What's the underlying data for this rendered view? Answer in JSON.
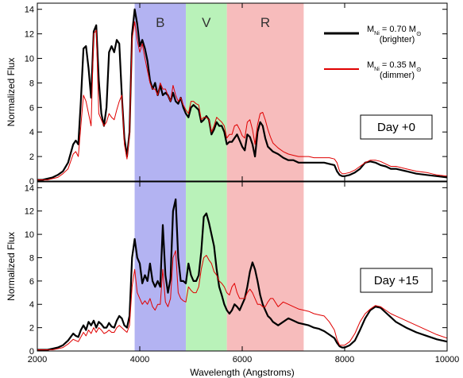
{
  "chart_data": [
    {
      "type": "line",
      "panel": "top",
      "annotation": "Day +0",
      "ylabel": "Normalized Flux",
      "xlim": [
        2000,
        10000
      ],
      "ylim": [
        0,
        14.5
      ],
      "yticks": [
        0,
        2,
        4,
        6,
        8,
        10,
        12,
        14
      ],
      "bands": [
        {
          "label": "B",
          "x0": 3900,
          "x1": 4900,
          "color": "#b3b3f2"
        },
        {
          "label": "V",
          "x0": 4900,
          "x1": 5700,
          "color": "#b9f2b9"
        },
        {
          "label": "R",
          "x0": 5700,
          "x1": 7200,
          "color": "#f7bcbc"
        }
      ],
      "series": [
        {
          "name_main": "M",
          "name_sub": "Ni",
          "name_rest": " = 0.70 M",
          "name_sun": "⊙",
          "name_line2": "(brighter)",
          "color": "#000000",
          "width": 2.2,
          "x": [
            2000,
            2100,
            2200,
            2300,
            2400,
            2500,
            2600,
            2700,
            2750,
            2800,
            2850,
            2900,
            2950,
            3000,
            3050,
            3100,
            3150,
            3200,
            3250,
            3300,
            3350,
            3400,
            3450,
            3500,
            3550,
            3600,
            3650,
            3700,
            3750,
            3800,
            3850,
            3900,
            3950,
            4000,
            4050,
            4100,
            4150,
            4200,
            4250,
            4300,
            4350,
            4400,
            4450,
            4500,
            4550,
            4600,
            4650,
            4700,
            4750,
            4800,
            4850,
            4900,
            4950,
            5000,
            5050,
            5100,
            5150,
            5200,
            5250,
            5300,
            5350,
            5400,
            5450,
            5500,
            5550,
            5600,
            5650,
            5700,
            5750,
            5800,
            5850,
            5900,
            5950,
            6000,
            6050,
            6100,
            6150,
            6200,
            6250,
            6300,
            6350,
            6400,
            6450,
            6500,
            6550,
            6600,
            6700,
            6800,
            6900,
            7000,
            7100,
            7200,
            7300,
            7400,
            7500,
            7600,
            7700,
            7800,
            7850,
            7900,
            7950,
            8000,
            8100,
            8200,
            8300,
            8400,
            8500,
            8600,
            8700,
            8800,
            8900,
            9000,
            9200,
            9400,
            9600,
            9800,
            10000
          ],
          "y": [
            0.1,
            0.1,
            0.2,
            0.3,
            0.5,
            0.8,
            1.5,
            3.0,
            3.3,
            3.0,
            6.5,
            10.8,
            11.0,
            9.2,
            6.8,
            12.2,
            12.7,
            8.2,
            5.5,
            4.5,
            6.0,
            10.5,
            11.0,
            10.5,
            11.5,
            11.2,
            7.0,
            3.5,
            2.0,
            4.0,
            12.0,
            14.0,
            12.8,
            11.0,
            11.5,
            10.8,
            9.8,
            8.2,
            7.5,
            8.0,
            7.0,
            7.8,
            7.0,
            7.2,
            7.0,
            6.5,
            7.2,
            6.5,
            6.3,
            6.8,
            6.0,
            5.5,
            5.2,
            6.0,
            6.2,
            6.0,
            5.8,
            4.8,
            5.0,
            5.3,
            5.0,
            3.8,
            4.2,
            4.8,
            4.5,
            4.5,
            4.0,
            3.0,
            3.2,
            3.2,
            3.5,
            3.8,
            3.3,
            2.8,
            2.5,
            3.8,
            3.6,
            3.0,
            2.0,
            4.0,
            4.8,
            4.5,
            3.5,
            2.8,
            2.6,
            2.4,
            2.2,
            1.9,
            1.7,
            1.7,
            1.5,
            1.5,
            1.5,
            1.5,
            1.5,
            1.5,
            1.4,
            1.3,
            0.8,
            0.5,
            0.4,
            0.4,
            0.5,
            0.7,
            1.0,
            1.5,
            1.6,
            1.5,
            1.3,
            1.2,
            1.0,
            1.0,
            0.8,
            0.6,
            0.5,
            0.4,
            0.3
          ]
        },
        {
          "name_main": "M",
          "name_sub": "Ni",
          "name_rest": " = 0.35 M",
          "name_sun": "⊙",
          "name_line2": "(dimmer)",
          "color": "#e00000",
          "width": 1.0,
          "x": [
            2000,
            2100,
            2200,
            2300,
            2400,
            2500,
            2600,
            2700,
            2750,
            2800,
            2850,
            2900,
            2950,
            3000,
            3050,
            3100,
            3150,
            3200,
            3250,
            3300,
            3350,
            3400,
            3450,
            3500,
            3550,
            3600,
            3650,
            3700,
            3750,
            3800,
            3850,
            3900,
            3950,
            4000,
            4050,
            4100,
            4150,
            4200,
            4250,
            4300,
            4350,
            4400,
            4450,
            4500,
            4550,
            4600,
            4650,
            4700,
            4750,
            4800,
            4850,
            4900,
            4950,
            5000,
            5050,
            5100,
            5150,
            5200,
            5250,
            5300,
            5350,
            5400,
            5450,
            5500,
            5550,
            5600,
            5650,
            5700,
            5750,
            5800,
            5850,
            5900,
            5950,
            6000,
            6050,
            6100,
            6150,
            6200,
            6250,
            6300,
            6350,
            6400,
            6450,
            6500,
            6550,
            6600,
            6700,
            6800,
            6900,
            7000,
            7100,
            7200,
            7300,
            7400,
            7500,
            7600,
            7700,
            7800,
            7850,
            7900,
            7950,
            8000,
            8100,
            8200,
            8300,
            8400,
            8500,
            8600,
            8700,
            8800,
            8900,
            9000,
            9200,
            9400,
            9600,
            9800,
            10000
          ],
          "y": [
            0.1,
            0.1,
            0.1,
            0.2,
            0.3,
            0.6,
            1.0,
            2.2,
            2.4,
            2.0,
            4.5,
            7.0,
            6.5,
            5.5,
            4.5,
            12.0,
            12.3,
            5.5,
            5.0,
            4.5,
            4.8,
            5.5,
            5.2,
            5.0,
            5.8,
            6.5,
            7.0,
            3.0,
            1.8,
            3.8,
            11.5,
            13.0,
            11.5,
            10.5,
            11.2,
            10.0,
            9.0,
            8.0,
            7.5,
            7.5,
            7.0,
            8.0,
            7.5,
            7.5,
            7.0,
            6.5,
            7.8,
            7.0,
            6.5,
            6.8,
            6.2,
            5.8,
            5.5,
            6.5,
            6.5,
            6.3,
            6.2,
            5.0,
            5.2,
            5.2,
            5.0,
            4.0,
            4.5,
            5.2,
            5.0,
            4.8,
            4.5,
            3.5,
            3.8,
            3.8,
            4.5,
            4.6,
            4.2,
            3.7,
            3.5,
            4.8,
            5.0,
            4.2,
            3.0,
            4.6,
            5.5,
            5.6,
            5.0,
            4.2,
            3.6,
            3.1,
            2.7,
            2.4,
            2.2,
            2.1,
            2.0,
            2.0,
            2.0,
            1.9,
            1.9,
            1.9,
            1.9,
            1.8,
            1.5,
            0.8,
            0.6,
            0.6,
            0.7,
            0.9,
            1.2,
            1.5,
            1.7,
            1.7,
            1.6,
            1.4,
            1.2,
            1.2,
            1.0,
            0.8,
            0.7,
            0.5,
            0.4
          ]
        }
      ]
    },
    {
      "type": "line",
      "panel": "bottom",
      "annotation": "Day +15",
      "ylabel": "Normalized Flux",
      "xlabel": "Wavelength (Angstroms)",
      "xlim": [
        2000,
        10000
      ],
      "xticks": [
        2000,
        4000,
        6000,
        8000,
        10000
      ],
      "ylim": [
        0,
        14.5
      ],
      "yticks": [
        0,
        2,
        4,
        6,
        8,
        10,
        12,
        14
      ],
      "series": [
        {
          "color": "#000000",
          "width": 2.2,
          "x": [
            2000,
            2100,
            2200,
            2300,
            2400,
            2500,
            2600,
            2700,
            2750,
            2800,
            2850,
            2900,
            2950,
            3000,
            3050,
            3100,
            3150,
            3200,
            3250,
            3300,
            3350,
            3400,
            3450,
            3500,
            3550,
            3600,
            3650,
            3700,
            3750,
            3800,
            3850,
            3900,
            3950,
            4000,
            4050,
            4100,
            4150,
            4200,
            4250,
            4300,
            4350,
            4400,
            4450,
            4500,
            4550,
            4600,
            4650,
            4700,
            4750,
            4800,
            4850,
            4900,
            4950,
            5000,
            5050,
            5100,
            5150,
            5200,
            5250,
            5300,
            5350,
            5400,
            5450,
            5500,
            5550,
            5600,
            5650,
            5700,
            5750,
            5800,
            5850,
            5900,
            5950,
            6000,
            6050,
            6100,
            6150,
            6200,
            6250,
            6300,
            6350,
            6400,
            6450,
            6500,
            6550,
            6600,
            6700,
            6800,
            6900,
            7000,
            7100,
            7200,
            7300,
            7400,
            7500,
            7600,
            7700,
            7800,
            7850,
            7900,
            7950,
            8000,
            8100,
            8200,
            8300,
            8400,
            8500,
            8600,
            8700,
            8800,
            8900,
            9000,
            9200,
            9400,
            9600,
            9800,
            10000
          ],
          "y": [
            0.1,
            0.1,
            0.1,
            0.2,
            0.3,
            0.5,
            0.9,
            1.5,
            1.3,
            1.2,
            1.8,
            2.2,
            1.8,
            2.5,
            2.2,
            2.6,
            2.0,
            2.5,
            2.3,
            2.0,
            2.0,
            2.4,
            2.1,
            2.0,
            2.6,
            3.0,
            2.8,
            2.2,
            2.0,
            3.0,
            8.0,
            9.6,
            8.0,
            7.5,
            5.8,
            6.5,
            6.0,
            7.5,
            6.0,
            5.5,
            6.0,
            5.5,
            10.8,
            6.5,
            5.0,
            6.2,
            12.0,
            13.0,
            8.0,
            6.0,
            6.0,
            5.8,
            7.5,
            6.5,
            6.0,
            6.0,
            6.5,
            8.5,
            11.5,
            11.8,
            11.0,
            10.0,
            9.0,
            7.0,
            5.5,
            4.8,
            4.0,
            3.5,
            3.2,
            3.5,
            4.0,
            3.8,
            3.5,
            4.0,
            4.5,
            5.5,
            6.8,
            7.6,
            7.0,
            6.0,
            4.8,
            4.0,
            3.5,
            3.0,
            2.8,
            2.5,
            2.2,
            2.5,
            2.8,
            2.6,
            2.4,
            2.3,
            2.2,
            2.0,
            1.9,
            1.7,
            1.4,
            1.1,
            0.7,
            0.4,
            0.3,
            0.3,
            0.5,
            0.9,
            1.8,
            2.8,
            3.5,
            3.8,
            3.7,
            3.3,
            2.9,
            2.5,
            2.0,
            1.6,
            1.3,
            1.0,
            0.8
          ]
        },
        {
          "color": "#e00000",
          "width": 1.0,
          "x": [
            2000,
            2100,
            2200,
            2300,
            2400,
            2500,
            2600,
            2700,
            2750,
            2800,
            2850,
            2900,
            2950,
            3000,
            3050,
            3100,
            3150,
            3200,
            3250,
            3300,
            3350,
            3400,
            3450,
            3500,
            3550,
            3600,
            3650,
            3700,
            3750,
            3800,
            3850,
            3900,
            3950,
            4000,
            4050,
            4100,
            4150,
            4200,
            4250,
            4300,
            4350,
            4400,
            4450,
            4500,
            4550,
            4600,
            4650,
            4700,
            4750,
            4800,
            4850,
            4900,
            4950,
            5000,
            5050,
            5100,
            5150,
            5200,
            5250,
            5300,
            5350,
            5400,
            5450,
            5500,
            5550,
            5600,
            5650,
            5700,
            5750,
            5800,
            5850,
            5900,
            5950,
            6000,
            6050,
            6100,
            6150,
            6200,
            6250,
            6300,
            6350,
            6400,
            6450,
            6500,
            6550,
            6600,
            6700,
            6800,
            6900,
            7000,
            7100,
            7200,
            7300,
            7400,
            7500,
            7600,
            7700,
            7800,
            7850,
            7900,
            7950,
            8000,
            8100,
            8200,
            8300,
            8400,
            8500,
            8600,
            8700,
            8800,
            8900,
            9000,
            9200,
            9400,
            9600,
            9800,
            10000
          ],
          "y": [
            0.1,
            0.1,
            0.1,
            0.1,
            0.2,
            0.3,
            0.6,
            1.0,
            0.9,
            0.8,
            1.2,
            1.6,
            1.3,
            1.8,
            1.5,
            2.0,
            1.6,
            2.0,
            1.8,
            1.5,
            1.6,
            1.8,
            1.6,
            1.6,
            2.0,
            2.2,
            2.0,
            1.8,
            1.6,
            2.2,
            5.5,
            7.0,
            5.0,
            4.5,
            4.0,
            4.3,
            4.0,
            4.5,
            3.8,
            3.5,
            4.0,
            4.0,
            7.0,
            4.2,
            3.8,
            4.5,
            8.0,
            8.6,
            5.0,
            4.5,
            4.3,
            4.2,
            5.5,
            5.2,
            5.0,
            5.0,
            5.5,
            7.0,
            8.0,
            8.2,
            7.8,
            7.5,
            6.8,
            6.5,
            6.0,
            5.8,
            5.5,
            5.0,
            4.8,
            5.5,
            5.8,
            5.0,
            4.5,
            4.5,
            4.5,
            5.0,
            5.3,
            5.0,
            4.5,
            4.0,
            4.0,
            3.8,
            3.8,
            4.2,
            4.5,
            4.5,
            3.8,
            4.2,
            4.0,
            3.8,
            3.6,
            3.5,
            3.4,
            3.2,
            3.1,
            3.0,
            2.5,
            1.8,
            1.0,
            0.5,
            0.5,
            0.5,
            0.8,
            1.5,
            2.5,
            3.2,
            3.6,
            3.9,
            3.8,
            3.5,
            3.2,
            3.0,
            2.6,
            2.2,
            1.8,
            1.4,
            1.1
          ]
        }
      ]
    }
  ]
}
